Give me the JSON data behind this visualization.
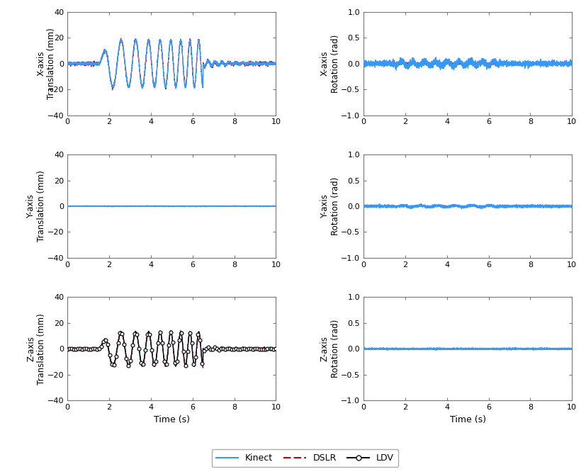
{
  "xlim": [
    0,
    10
  ],
  "xticks": [
    0,
    2,
    4,
    6,
    8,
    10
  ],
  "translation_ylim": [
    -40,
    40
  ],
  "translation_yticks": [
    -40,
    -20,
    0,
    20,
    40
  ],
  "rotation_ylim": [
    -1,
    1
  ],
  "rotation_yticks": [
    -1,
    -0.5,
    0,
    0.5,
    1
  ],
  "xlabel": "Time (s)",
  "axes_labels": [
    "X-axis",
    "Y-axis",
    "Z-axis"
  ],
  "colors": {
    "kinect": "#3399ff",
    "dslr": "#cc0000",
    "ldv": "#111111",
    "background": "#ffffff"
  },
  "legend": [
    "Kinect",
    "DSLR",
    "LDV"
  ],
  "kinect_lw": 1.0,
  "dslr_lw": 0.9,
  "ldv_lw": 1.0,
  "n_points": 3000,
  "ldv_marker_n": 100
}
